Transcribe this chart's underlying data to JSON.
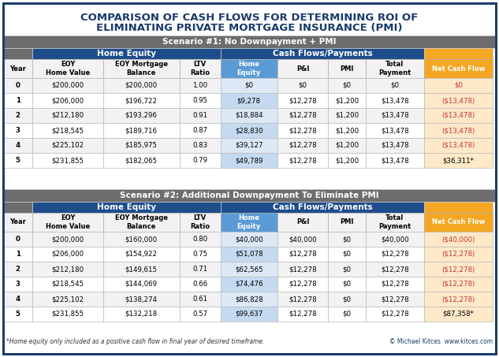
{
  "title_line1": "COMPARISON OF CASH FLOWS FOR DETERMINING ROI OF",
  "title_line2": "ELIMINATING PRIVATE MORTGAGE INSURANCE (PMI)",
  "scenario1_title": "Scenario #1: No Downpayment + PMI",
  "scenario2_title": "Scenario #2: Additional Downpayment To Eliminate PMI",
  "subheader_home_equity": "Home Equity",
  "subheader_cashflows": "Cash Flows/Payments",
  "col_headers": [
    "Year",
    "EOY\nHome Value",
    "EOY Mortgage\nBalance",
    "LTV\nRatio",
    "Home\nEquity",
    "P&I",
    "PMI",
    "Total\nPayment",
    "Net Cash Flow"
  ],
  "scenario1_data": [
    [
      "0",
      "$200,000",
      "$200,000",
      "1.00",
      "$0",
      "$0",
      "$0",
      "$0",
      "$0"
    ],
    [
      "1",
      "$206,000",
      "$196,722",
      "0.95",
      "$9,278",
      "$12,278",
      "$1,200",
      "$13,478",
      "($13,478)"
    ],
    [
      "2",
      "$212,180",
      "$193,296",
      "0.91",
      "$18,884",
      "$12,278",
      "$1,200",
      "$13,478",
      "($13,478)"
    ],
    [
      "3",
      "$218,545",
      "$189,716",
      "0.87",
      "$28,830",
      "$12,278",
      "$1,200",
      "$13,478",
      "($13,478)"
    ],
    [
      "4",
      "$225,102",
      "$185,975",
      "0.83",
      "$39,127",
      "$12,278",
      "$1,200",
      "$13,478",
      "($13,478)"
    ],
    [
      "5",
      "$231,855",
      "$182,065",
      "0.79",
      "$49,789",
      "$12,278",
      "$1,200",
      "$13,478",
      "$36,311*"
    ]
  ],
  "scenario2_data": [
    [
      "0",
      "$200,000",
      "$160,000",
      "0.80",
      "$40,000",
      "$40,000",
      "$0",
      "$40,000",
      "($40,000)"
    ],
    [
      "1",
      "$206,000",
      "$154,922",
      "0.75",
      "$51,078",
      "$12,278",
      "$0",
      "$12,278",
      "($12,278)"
    ],
    [
      "2",
      "$212,180",
      "$149,615",
      "0.71",
      "$62,565",
      "$12,278",
      "$0",
      "$12,278",
      "($12,278)"
    ],
    [
      "3",
      "$218,545",
      "$144,069",
      "0.66",
      "$74,476",
      "$12,278",
      "$0",
      "$12,278",
      "($12,278)"
    ],
    [
      "4",
      "$225,102",
      "$138,274",
      "0.61",
      "$86,828",
      "$12,278",
      "$0",
      "$12,278",
      "($12,278)"
    ],
    [
      "5",
      "$231,855",
      "$132,218",
      "0.57",
      "$99,637",
      "$12,278",
      "$0",
      "$12,278",
      "$87,358*"
    ]
  ],
  "footer": "*Home equity only included as a positive cash flow in final year of desired timeframe.",
  "credit": "© Michael Kitces  www.kitces.com",
  "colors": {
    "title_bg": "#FFFFFF",
    "title_text": "#1a3a6b",
    "scenario_header_bg": "#6d6d6d",
    "scenario_header_text": "#FFFFFF",
    "subheader_home_equity_bg": "#1e4d8c",
    "subheader_cashflows_bg": "#1e4d8c",
    "subheader_text": "#FFFFFF",
    "col_header_year_bg": "#FFFFFF",
    "col_header_home_equity_bg": "#FFFFFF",
    "col_header_ltv_bg": "#FFFFFF",
    "col_header_home_equity_cell_bg": "#5b9bd5",
    "col_header_home_equity_cell_text": "#FFFFFF",
    "col_header_cashflow_bg": "#FFFFFF",
    "col_header_net_cash_bg": "#f5a623",
    "col_header_net_cash_text": "#FFFFFF",
    "data_row_odd_bg": "#f2f2f2",
    "data_row_even_bg": "#FFFFFF",
    "data_home_equity_odd_bg": "#dbe8f5",
    "data_home_equity_even_bg": "#c5daf0",
    "data_net_positive_bg": "#fde8c8",
    "data_net_negative_text": "#c0392b",
    "data_net_positive_text": "#000000",
    "outer_border": "#1a3a6b",
    "table_border": "#cccccc"
  }
}
